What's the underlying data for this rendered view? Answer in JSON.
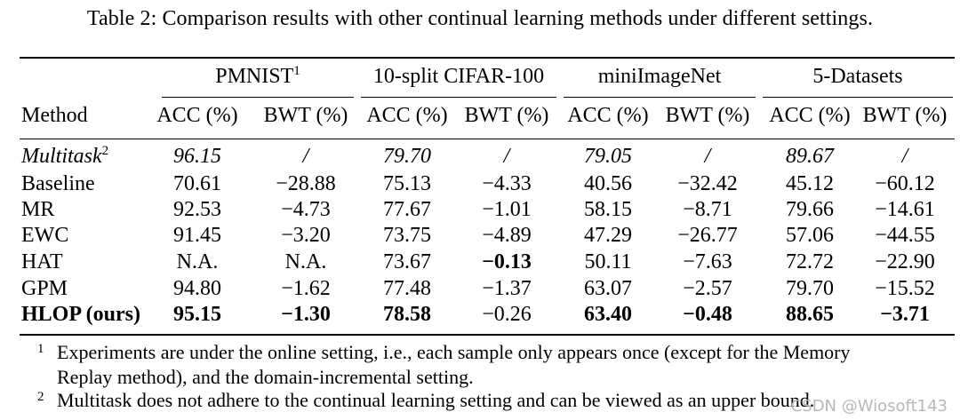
{
  "caption": "Table 2: Comparison results with other continual learning methods under different settings.",
  "table": {
    "method_header": "Method",
    "groups": [
      {
        "name": "PMNIST",
        "sup": "1"
      },
      {
        "name": "10-split CIFAR-100",
        "sup": ""
      },
      {
        "name": "miniImageNet",
        "sup": ""
      },
      {
        "name": "5-Datasets",
        "sup": ""
      }
    ],
    "metrics": [
      "ACC (%)",
      "BWT (%)",
      "ACC (%)",
      "BWT (%)",
      "ACC (%)",
      "BWT (%)",
      "ACC (%)",
      "BWT (%)"
    ],
    "rows": [
      {
        "method": "Multitask",
        "sup": "2",
        "style": "italic",
        "values": [
          "96.15",
          "/",
          "79.70",
          "/",
          "79.05",
          "/",
          "89.67",
          "/"
        ],
        "bold": [
          false,
          false,
          false,
          false,
          false,
          false,
          false,
          false
        ]
      },
      {
        "method": "Baseline",
        "sup": "",
        "style": "normal",
        "values": [
          "70.61",
          "−28.88",
          "75.13",
          "−4.33",
          "40.56",
          "−32.42",
          "45.12",
          "−60.12"
        ],
        "bold": [
          false,
          false,
          false,
          false,
          false,
          false,
          false,
          false
        ]
      },
      {
        "method": "MR",
        "sup": "",
        "style": "normal",
        "values": [
          "92.53",
          "−4.73",
          "77.67",
          "−1.01",
          "58.15",
          "−8.71",
          "79.66",
          "−14.61"
        ],
        "bold": [
          false,
          false,
          false,
          false,
          false,
          false,
          false,
          false
        ]
      },
      {
        "method": "EWC",
        "sup": "",
        "style": "normal",
        "values": [
          "91.45",
          "−3.20",
          "73.75",
          "−4.89",
          "47.29",
          "−26.77",
          "57.06",
          "−44.55"
        ],
        "bold": [
          false,
          false,
          false,
          false,
          false,
          false,
          false,
          false
        ]
      },
      {
        "method": "HAT",
        "sup": "",
        "style": "normal",
        "values": [
          "N.A.",
          "N.A.",
          "73.67",
          "−0.13",
          "50.11",
          "−7.63",
          "72.72",
          "−22.90"
        ],
        "bold": [
          false,
          false,
          false,
          true,
          false,
          false,
          false,
          false
        ]
      },
      {
        "method": "GPM",
        "sup": "",
        "style": "normal",
        "values": [
          "94.80",
          "−1.62",
          "77.48",
          "−1.37",
          "63.07",
          "−2.57",
          "79.70",
          "−15.52"
        ],
        "bold": [
          false,
          false,
          false,
          false,
          false,
          false,
          false,
          false
        ]
      },
      {
        "method": "HLOP (ours)",
        "sup": "",
        "style": "bold",
        "values": [
          "95.15",
          "−1.30",
          "78.58",
          "−0.26",
          "63.40",
          "−0.48",
          "88.65",
          "−3.71"
        ],
        "bold": [
          true,
          true,
          true,
          false,
          true,
          true,
          true,
          true
        ]
      }
    ]
  },
  "footnotes": [
    {
      "mark": "1",
      "lines": [
        "Experiments are under the online setting, i.e., each sample only appears once (except for the Memory",
        "Replay method), and the domain-incremental setting."
      ]
    },
    {
      "mark": "2",
      "lines": [
        "Multitask does not adhere to the continual learning setting and can be viewed as an upper bound."
      ]
    }
  ],
  "watermark": "CSDN @Wiosoft143"
}
